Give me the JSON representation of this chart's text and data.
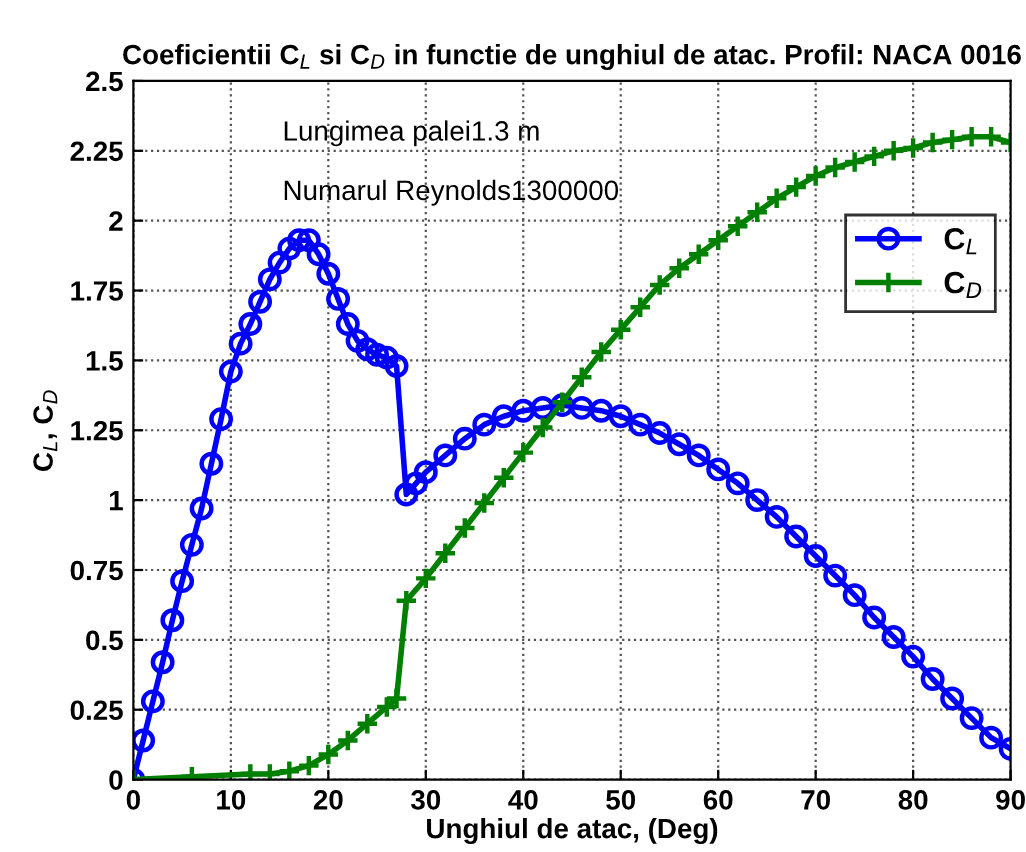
{
  "chart_data": {
    "type": "line",
    "title": "Coeficientii C$_{L}$ si C$_{D}$ in functie de unghiul de atac. Profil: NACA 0016",
    "xlabel": "Unghiul de atac, (Deg)",
    "ylabel": "C$_{L}$, C$_{D}$",
    "annotations": [
      "Lungimea palei1.3 m",
      "Numarul Reynolds1300000"
    ],
    "xlim": [
      0,
      90
    ],
    "xticks": [
      0,
      10,
      20,
      30,
      40,
      50,
      60,
      70,
      80,
      90
    ],
    "ylim": [
      0,
      2.5
    ],
    "yticks": [
      0,
      0.25,
      0.5,
      0.75,
      1,
      1.25,
      1.5,
      1.75,
      2,
      2.25,
      2.5
    ],
    "grid": true,
    "legend": "top right",
    "line_style": "solid",
    "series": [
      {
        "name": "C$_{L}$",
        "color": "#0000ff",
        "marker": "circle",
        "x": [
          0,
          1,
          2,
          3,
          4,
          5,
          6,
          7,
          8,
          9,
          10,
          11,
          12,
          13,
          14,
          15,
          16,
          17,
          18,
          19,
          20,
          21,
          22,
          23,
          24,
          25,
          26,
          27,
          28,
          29,
          30,
          32,
          34,
          36,
          38,
          40,
          42,
          44,
          46,
          48,
          50,
          52,
          54,
          56,
          58,
          60,
          62,
          64,
          66,
          68,
          70,
          72,
          74,
          76,
          78,
          80,
          82,
          84,
          86,
          88,
          90
        ],
        "values": [
          0,
          0.14,
          0.28,
          0.42,
          0.57,
          0.71,
          0.84,
          0.97,
          1.13,
          1.29,
          1.46,
          1.56,
          1.63,
          1.71,
          1.79,
          1.85,
          1.9,
          1.93,
          1.93,
          1.88,
          1.81,
          1.72,
          1.63,
          1.57,
          1.54,
          1.52,
          1.51,
          1.48,
          1.02,
          1.06,
          1.1,
          1.16,
          1.22,
          1.27,
          1.3,
          1.32,
          1.33,
          1.34,
          1.33,
          1.32,
          1.3,
          1.27,
          1.24,
          1.2,
          1.16,
          1.11,
          1.06,
          1.0,
          0.94,
          0.87,
          0.8,
          0.73,
          0.66,
          0.58,
          0.51,
          0.44,
          0.36,
          0.29,
          0.22,
          0.15,
          0.11
        ]
      },
      {
        "name": "C$_{D}$",
        "color": "#008000",
        "marker": "cross",
        "x": [
          0,
          6,
          12,
          14,
          16,
          18,
          20,
          22,
          24,
          26,
          27,
          28,
          30,
          32,
          34,
          36,
          38,
          40,
          42,
          44,
          46,
          48,
          50,
          52,
          54,
          56,
          58,
          60,
          62,
          64,
          66,
          68,
          70,
          72,
          74,
          76,
          78,
          80,
          82,
          84,
          86,
          88,
          90
        ],
        "values": [
          0,
          0.01,
          0.02,
          0.02,
          0.03,
          0.05,
          0.09,
          0.14,
          0.2,
          0.26,
          0.29,
          0.64,
          0.72,
          0.81,
          0.9,
          0.99,
          1.08,
          1.17,
          1.26,
          1.35,
          1.44,
          1.53,
          1.61,
          1.69,
          1.77,
          1.83,
          1.88,
          1.93,
          1.98,
          2.03,
          2.08,
          2.12,
          2.16,
          2.19,
          2.21,
          2.23,
          2.25,
          2.26,
          2.28,
          2.29,
          2.3,
          2.3,
          2.28
        ]
      }
    ]
  }
}
